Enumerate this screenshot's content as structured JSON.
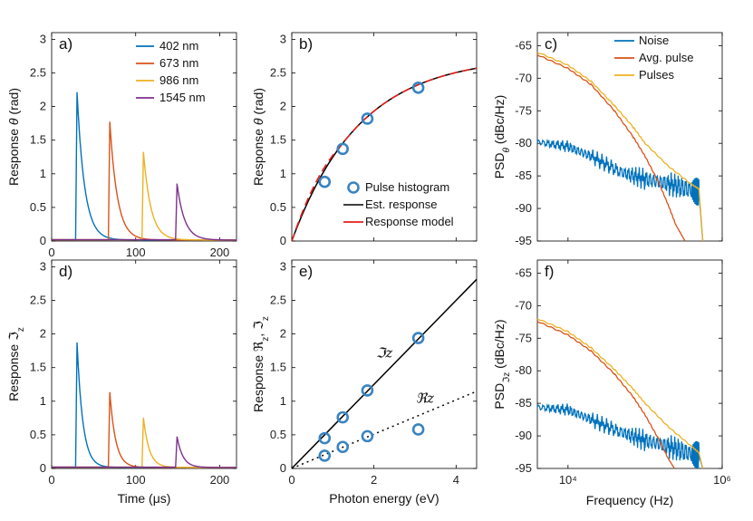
{
  "colors": {
    "blue": "#0072BD",
    "orange": "#D95319",
    "yellow": "#EDB120",
    "purple": "#7E2F8E",
    "black": "#000000",
    "red": "#E3201B",
    "circle": "#3A84C1"
  },
  "chart_data": [
    {
      "id": "a",
      "panel_label": "a)",
      "type": "line",
      "xlim": [
        0,
        220
      ],
      "ylim": [
        0,
        3.1
      ],
      "xticks": [
        "0",
        "100",
        "200"
      ],
      "yticks": [
        "0",
        "0.5",
        "1",
        "1.5",
        "2",
        "2.5",
        "3"
      ],
      "xlabel": "",
      "ylabel": "Response θ (rad)",
      "series": [
        {
          "name": "402 nm",
          "color": "blue",
          "onset": 29,
          "peak": 2.2,
          "tau": 9
        },
        {
          "name": "673 nm",
          "color": "orange",
          "onset": 68,
          "peak": 1.76,
          "tau": 9
        },
        {
          "name": "986 nm",
          "color": "yellow",
          "onset": 108,
          "peak": 1.31,
          "tau": 9
        },
        {
          "name": "1545 nm",
          "color": "purple",
          "onset": 148,
          "peak": 0.84,
          "tau": 9
        }
      ],
      "legend": [
        "402 nm",
        "673 nm",
        "986 nm",
        "1545 nm"
      ],
      "legend_position": "top-right"
    },
    {
      "id": "b",
      "panel_label": "b)",
      "type": "scatter+line",
      "xlim": [
        0,
        4.5
      ],
      "ylim": [
        0,
        3.1
      ],
      "xticks": [],
      "yticks": [
        "0",
        "0.5",
        "1",
        "1.5",
        "2",
        "2.5",
        "3"
      ],
      "xlabel": "",
      "ylabel": "Response θ (rad)",
      "points": {
        "name": "Pulse histogram",
        "x": [
          0.8,
          1.24,
          1.84,
          3.08
        ],
        "y": [
          0.88,
          1.37,
          1.82,
          2.28
        ]
      },
      "curves": [
        {
          "name": "Est. response",
          "style": "solid",
          "color": "black"
        },
        {
          "name": "Response model",
          "style": "dashed",
          "color": "red"
        }
      ],
      "legend": [
        "Pulse histogram",
        "Est. response",
        "Response model"
      ],
      "legend_position": "bottom-right"
    },
    {
      "id": "c",
      "panel_label": "c)",
      "type": "line",
      "xscale": "log",
      "xlim": [
        4000,
        1000000
      ],
      "ylim": [
        -95,
        -63
      ],
      "xticks": [],
      "yticks": [
        "-65",
        "-70",
        "-75",
        "-80",
        "-85",
        "-90",
        "-95"
      ],
      "xlabel": "",
      "ylabel": "PSD_θ (dBc/Hz)",
      "series": [
        {
          "name": "Noise",
          "color": "blue",
          "points": [
            [
              4000,
              -79.8
            ],
            [
              10000,
              -80.5
            ],
            [
              20000,
              -82
            ],
            [
              50000,
              -84.5
            ],
            [
              100000,
              -85.5
            ],
            [
              200000,
              -86.2
            ],
            [
              400000,
              -87.2
            ],
            [
              500000,
              -87.5
            ],
            [
              560000,
              -95
            ]
          ]
        },
        {
          "name": "Avg. pulse",
          "color": "orange",
          "points": [
            [
              4000,
              -66.4
            ],
            [
              10000,
              -68.5
            ],
            [
              20000,
              -71
            ],
            [
              40000,
              -75
            ],
            [
              70000,
              -79
            ],
            [
              100000,
              -82
            ],
            [
              150000,
              -86
            ],
            [
              200000,
              -89.5
            ],
            [
              250000,
              -92.5
            ],
            [
              330000,
              -95
            ]
          ]
        },
        {
          "name": "Pulses",
          "color": "yellow",
          "points": [
            [
              4000,
              -66
            ],
            [
              10000,
              -68
            ],
            [
              20000,
              -70.5
            ],
            [
              40000,
              -74.2
            ],
            [
              70000,
              -77.5
            ],
            [
              100000,
              -80
            ],
            [
              200000,
              -83.5
            ],
            [
              400000,
              -86.3
            ],
            [
              500000,
              -87
            ],
            [
              560000,
              -95
            ]
          ]
        }
      ],
      "legend": [
        "Noise",
        "Avg. pulse",
        "Pulses"
      ],
      "legend_position": "top-right"
    },
    {
      "id": "d",
      "panel_label": "d)",
      "type": "line",
      "xlim": [
        0,
        220
      ],
      "ylim": [
        0,
        3.1
      ],
      "xticks": [
        "0",
        "100",
        "200"
      ],
      "yticks": [
        "0",
        "0.5",
        "1",
        "1.5",
        "2",
        "2.5",
        "3"
      ],
      "xlabel": "Time (μs)",
      "ylabel": "Response ℑz",
      "series": [
        {
          "name": "402 nm",
          "color": "blue",
          "onset": 29,
          "peak": 1.86,
          "tau": 7
        },
        {
          "name": "673 nm",
          "color": "orange",
          "onset": 68,
          "peak": 1.12,
          "tau": 7
        },
        {
          "name": "986 nm",
          "color": "yellow",
          "onset": 108,
          "peak": 0.74,
          "tau": 7
        },
        {
          "name": "1545 nm",
          "color": "purple",
          "onset": 148,
          "peak": 0.46,
          "tau": 7
        }
      ]
    },
    {
      "id": "e",
      "panel_label": "e)",
      "type": "scatter+line",
      "xlim": [
        0,
        4.5
      ],
      "ylim": [
        0,
        3.1
      ],
      "xticks": [
        "0",
        "2",
        "4"
      ],
      "yticks": [
        "0",
        "0.5",
        "1",
        "1.5",
        "2",
        "2.5",
        "3"
      ],
      "xlabel": "Photon energy (eV)",
      "ylabel": "Response ℜz, ℑz",
      "series": [
        {
          "name": "ℑz",
          "x": [
            0.8,
            1.24,
            1.84,
            3.08
          ],
          "y": [
            0.45,
            0.76,
            1.16,
            1.94
          ],
          "slope": 0.625,
          "style": "solid"
        },
        {
          "name": "ℜz",
          "x": [
            0.8,
            1.24,
            1.84,
            3.08
          ],
          "y": [
            0.19,
            0.32,
            0.48,
            0.58
          ],
          "slope": 0.255,
          "style": "dotted"
        }
      ],
      "annotations": [
        "ℑz",
        "ℜz"
      ]
    },
    {
      "id": "f",
      "panel_label": "f)",
      "type": "line",
      "xscale": "log",
      "xlim": [
        4000,
        1000000
      ],
      "ylim": [
        -95,
        -63
      ],
      "xticks": [
        "10⁴",
        "10⁶"
      ],
      "yticks": [
        "-65",
        "-70",
        "-75",
        "-80",
        "-85",
        "-90",
        "-95"
      ],
      "xlabel": "Frequency (Hz)",
      "ylabel": "PSD_ℑz (dBc/Hz)",
      "series": [
        {
          "name": "Noise",
          "color": "blue",
          "points": [
            [
              4000,
              -85.6
            ],
            [
              10000,
              -86
            ],
            [
              20000,
              -87.5
            ],
            [
              50000,
              -89.5
            ],
            [
              100000,
              -90.7
            ],
            [
              200000,
              -91.6
            ],
            [
              400000,
              -92.8
            ],
            [
              500000,
              -93
            ],
            [
              560000,
              -95
            ]
          ]
        },
        {
          "name": "Avg. pulse",
          "color": "orange",
          "points": [
            [
              4000,
              -72.4
            ],
            [
              10000,
              -74.5
            ],
            [
              20000,
              -77
            ],
            [
              40000,
              -80.5
            ],
            [
              70000,
              -84
            ],
            [
              100000,
              -86.8
            ],
            [
              150000,
              -90.5
            ],
            [
              200000,
              -93.5
            ],
            [
              240000,
              -95
            ]
          ]
        },
        {
          "name": "Pulses",
          "color": "yellow",
          "points": [
            [
              4000,
              -72
            ],
            [
              10000,
              -74
            ],
            [
              20000,
              -76.5
            ],
            [
              40000,
              -79.8
            ],
            [
              70000,
              -82.8
            ],
            [
              100000,
              -85
            ],
            [
              200000,
              -88.6
            ],
            [
              400000,
              -91.6
            ],
            [
              500000,
              -92.6
            ],
            [
              560000,
              -95
            ]
          ]
        }
      ]
    }
  ]
}
